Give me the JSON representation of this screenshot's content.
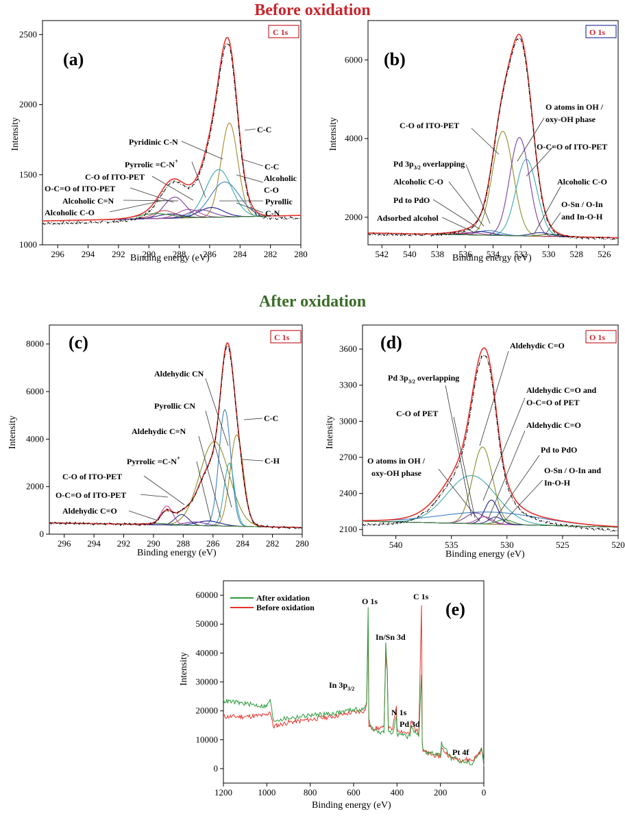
{
  "headings": {
    "before": "Before oxidation",
    "after": "After oxidation"
  },
  "colors": {
    "before_heading": "#c9252d",
    "after_heading": "#3a6b27",
    "fit_envelope": "#e8302b",
    "experimental": "#000000",
    "tag_text": "#c9252d",
    "tag_border_c1s": "#c9252d",
    "tag_border_o1s": "#2c3a9e"
  },
  "chart_data": [
    {
      "panel": "(a)",
      "tag": "C 1s",
      "type": "line",
      "xlabel": "Binding energy (eV)",
      "ylabel": "Intensity",
      "xlim": [
        297,
        280
      ],
      "ylim": [
        1000,
        2600
      ],
      "xticks": [
        296,
        294,
        292,
        290,
        288,
        286,
        284,
        282,
        280
      ],
      "yticks": [
        1000,
        1500,
        2000,
        2500
      ],
      "baseline": [
        1170,
        1210
      ],
      "envelope_peak": {
        "x": 284.7,
        "y": 2480
      },
      "components": [
        {
          "name": "C-C",
          "center": 284.7,
          "height": 670,
          "width": 0.55,
          "color": "#a3882a"
        },
        {
          "name": "C-C",
          "center": 285.4,
          "height": 340,
          "width": 0.85,
          "color": "#3aa8a8"
        },
        {
          "name": "Alcoholic C-O",
          "center": 285.0,
          "height": 250,
          "width": 0.95,
          "color": "#3d7fc4"
        },
        {
          "name": "Pyrrolic C-N",
          "center": 285.9,
          "height": 70,
          "width": 0.8,
          "color": "#1a1a8c"
        },
        {
          "name": "Pyridinic C-N",
          "center": 286.6,
          "height": 55,
          "width": 0.8,
          "color": "#7a3c9a"
        },
        {
          "name": "Pyrrolic =C-N+",
          "center": 287.4,
          "height": 60,
          "width": 0.7,
          "color": "#b04a9a"
        },
        {
          "name": "C-O of ITO-PET",
          "center": 288.3,
          "height": 150,
          "width": 0.7,
          "color": "#7a3c9a"
        },
        {
          "name": "O-C=O of ITO-PET",
          "center": 289.0,
          "height": 55,
          "width": 0.7,
          "color": "#c04a4a"
        },
        {
          "name": "Alcoholic C=N",
          "center": 288.6,
          "height": 30,
          "width": 0.8,
          "color": "#2b2b8a"
        },
        {
          "name": "Alcoholic C-O",
          "center": 289.6,
          "height": 35,
          "width": 1.1,
          "color": "#3a8a3a"
        }
      ],
      "labels": [
        "C-C",
        "Pyridinic C-N",
        "Pyrrolic =C-N",
        "C-O of ITO-PET",
        "O-C=O of ITO-PET",
        "Alcoholic C=N",
        "Alcoholic C-O",
        "C-C",
        "Alcoholic",
        "C-O",
        "Pyrollic",
        "C-N"
      ]
    },
    {
      "panel": "(b)",
      "tag": "O 1s",
      "type": "line",
      "xlabel": "Binding energy (eV)",
      "ylabel": "Intensity",
      "xlim": [
        543,
        525
      ],
      "ylim": [
        1300,
        7000
      ],
      "xticks": [
        542,
        540,
        538,
        536,
        534,
        532,
        530,
        528,
        526
      ],
      "yticks": [
        2000,
        4000,
        6000
      ],
      "baseline": [
        1600,
        1480
      ],
      "envelope_peak": {
        "x": 532.3,
        "y": 6650
      },
      "components": [
        {
          "name": "C-O of ITO-PET",
          "center": 533.3,
          "height": 2650,
          "width": 0.75,
          "color": "#8c8c2a"
        },
        {
          "name": "O atoms in OH / oxy-OH phase",
          "center": 532.1,
          "height": 2500,
          "width": 0.7,
          "color": "#7a3c9a"
        },
        {
          "name": "O-C=O of ITO-PET",
          "center": 531.6,
          "height": 1950,
          "width": 0.75,
          "color": "#3aa8a8"
        },
        {
          "name": "Pd 3p3/2 overlapping",
          "center": 534.3,
          "height": 120,
          "width": 0.8,
          "color": "#3d7fc4"
        },
        {
          "name": "Alcoholic C-O",
          "center": 534.9,
          "height": 90,
          "width": 0.8,
          "color": "#1a1a8c"
        },
        {
          "name": "Pd to PdO",
          "center": 535.6,
          "height": 60,
          "width": 0.8,
          "color": "#b04a9a"
        },
        {
          "name": "Adsorbed alcohol",
          "center": 536.8,
          "height": 40,
          "width": 0.9,
          "color": "#c04a4a"
        },
        {
          "name": "Alcoholic C-O",
          "center": 530.6,
          "height": 90,
          "width": 0.7,
          "color": "#2b2b8a"
        },
        {
          "name": "O-Sn / O-In and In-O-H",
          "center": 529.8,
          "height": 60,
          "width": 0.7,
          "color": "#3a8a3a"
        }
      ],
      "labels": [
        "C-O of ITO-PET",
        "O atoms in OH /",
        "oxy-OH phase",
        "O-C=O of ITO-PET",
        "Pd 3p",
        "overlapping",
        "Alcoholic C-O",
        "Pd to PdO",
        "Adsorbed alcohol",
        "Alcoholic C-O",
        "O-Sn / O-In",
        "and In-O-H"
      ]
    },
    {
      "panel": "(c)",
      "tag": "C 1s",
      "type": "line",
      "xlabel": "Binding energy (eV)",
      "ylabel": "Intensity",
      "xlim": [
        297,
        280
      ],
      "ylim": [
        0,
        8800
      ],
      "xticks": [
        296,
        294,
        292,
        290,
        288,
        286,
        284,
        282,
        280
      ],
      "yticks": [
        0,
        2000,
        4000,
        6000,
        8000
      ],
      "baseline": [
        480,
        280
      ],
      "envelope_peak": {
        "x": 285.0,
        "y": 8050
      },
      "components": [
        {
          "name": "Aldehydic CN",
          "center": 285.9,
          "height": 3550,
          "width": 1.0,
          "color": "#8c8c2a"
        },
        {
          "name": "C-C",
          "center": 284.4,
          "height": 3850,
          "width": 0.45,
          "color": "#a3882a"
        },
        {
          "name": "Pyrollic CN",
          "center": 285.2,
          "height": 4900,
          "width": 0.4,
          "color": "#3d7fc4"
        },
        {
          "name": "C-H",
          "center": 284.9,
          "height": 2650,
          "width": 0.35,
          "color": "#3aa8a8"
        },
        {
          "name": "Aldehydic C=N",
          "center": 286.3,
          "height": 200,
          "width": 0.8,
          "color": "#1a1a8c"
        },
        {
          "name": "Pyrrolic =C-N+",
          "center": 287.2,
          "height": 150,
          "width": 0.7,
          "color": "#7a3c9a"
        },
        {
          "name": "C-O of ITO-PET",
          "center": 288.1,
          "height": 450,
          "width": 0.45,
          "color": "#2b2b8a"
        },
        {
          "name": "O-C=O of ITO-PET",
          "center": 289.1,
          "height": 800,
          "width": 0.4,
          "color": "#c04a9a"
        },
        {
          "name": "Aldehydic C=O",
          "center": 289.8,
          "height": 60,
          "width": 0.9,
          "color": "#3a8a3a"
        }
      ],
      "labels": [
        "Aldehydic CN",
        "Pyrollic CN",
        "Aldehydic C=N",
        "Pyrrolic =C-N",
        "C-O of ITO-PET",
        "O-C=O of ITO-PET",
        "Aldehydic C=O",
        "C-C",
        "C-H"
      ]
    },
    {
      "panel": "(d)",
      "tag": "O 1s",
      "type": "line",
      "xlabel": "Binding energy (eV)",
      "ylabel": "Intensity",
      "xlim": [
        543,
        520
      ],
      "ylim": [
        2050,
        3800
      ],
      "xticks": [
        540,
        535,
        530,
        525,
        520
      ],
      "yticks": [
        2100,
        2400,
        2700,
        3000,
        3300,
        3600
      ],
      "baseline": [
        2170,
        2120
      ],
      "envelope_peak": {
        "x": 531.8,
        "y": 3610
      },
      "components": [
        {
          "name": "C-O of PET",
          "center": 533.2,
          "height": 400,
          "width": 2.2,
          "color": "#3aa8a8"
        },
        {
          "name": "Aldehydic C=O",
          "center": 532.2,
          "height": 640,
          "width": 0.9,
          "color": "#8c8c2a"
        },
        {
          "name": "O atoms in OH / oxy-OH phase",
          "center": 531.5,
          "height": 100,
          "width": 4.5,
          "color": "#3d7fc4"
        },
        {
          "name": "Pd 3p3/2 overlapping",
          "center": 532.8,
          "height": 90,
          "width": 0.9,
          "color": "#7a3c9a"
        },
        {
          "name": "Aldehydic C=O and O-C=O of PET",
          "center": 531.4,
          "height": 200,
          "width": 0.6,
          "color": "#1a1a8c"
        },
        {
          "name": "Aldehydic C=O",
          "center": 532.0,
          "height": 60,
          "width": 0.7,
          "color": "#b04a9a"
        },
        {
          "name": "Pd to PdO",
          "center": 531.0,
          "height": 60,
          "width": 0.6,
          "color": "#2b2b8a"
        },
        {
          "name": "O-Sn / O-In and In-O-H",
          "center": 530.2,
          "height": 40,
          "width": 0.7,
          "color": "#3a8a3a"
        }
      ],
      "labels": [
        "Aldehydic C=O",
        "Pd 3p",
        "overlapping",
        "Aldehydic C=O and",
        "O-C=O of PET",
        "C-O of PET",
        "Aldehydic C=O",
        "Pd to PdO",
        "O atoms in OH /",
        "oxy-OH phase",
        "O-Sn / O-In and",
        "In-O-H"
      ]
    },
    {
      "panel": "(e)",
      "type": "line",
      "xlabel": "Binding energy (eV)",
      "ylabel": "Intensity",
      "xlim": [
        1200,
        0
      ],
      "ylim": [
        -5000,
        65000
      ],
      "xticks": [
        1200,
        1000,
        800,
        600,
        400,
        200,
        0
      ],
      "yticks": [
        0,
        10000,
        20000,
        30000,
        40000,
        50000,
        60000
      ],
      "series": [
        {
          "name": "After oxidation",
          "color": "#2a9a3a",
          "x": [
            1200,
            1100,
            1000,
            985,
            970,
            960,
            900,
            800,
            700,
            600,
            550,
            540,
            533,
            530,
            520,
            500,
            460,
            452,
            445,
            440,
            420,
            403,
            400,
            340,
            336,
            300,
            287,
            284,
            280,
            250,
            200,
            195,
            150,
            100,
            50,
            10,
            0
          ],
          "y": [
            23500,
            22500,
            21500,
            24000,
            16500,
            16800,
            17500,
            18500,
            19000,
            20500,
            20500,
            23000,
            56500,
            17000,
            14500,
            13000,
            12500,
            43000,
            34000,
            12500,
            12000,
            19000,
            12000,
            11000,
            15000,
            10500,
            32000,
            9000,
            6000,
            5500,
            4500,
            9000,
            3500,
            2500,
            2000,
            7000,
            1000
          ]
        },
        {
          "name": "Before oxidation",
          "color": "#e8302b",
          "x": [
            1200,
            1100,
            1000,
            985,
            970,
            960,
            900,
            800,
            700,
            600,
            550,
            540,
            533,
            530,
            520,
            500,
            460,
            452,
            445,
            440,
            420,
            403,
            400,
            340,
            336,
            300,
            287,
            284,
            280,
            250,
            200,
            195,
            150,
            100,
            50,
            10,
            0
          ],
          "y": [
            18000,
            18000,
            18500,
            20000,
            14500,
            14800,
            16000,
            17000,
            18000,
            19500,
            20000,
            22000,
            50000,
            15000,
            14000,
            14000,
            14000,
            40000,
            33000,
            14000,
            13500,
            22000,
            13500,
            12000,
            16500,
            12000,
            57000,
            9500,
            6000,
            5000,
            4200,
            7000,
            3800,
            3200,
            3000,
            6500,
            2500
          ]
        }
      ],
      "labels": [
        "O 1s",
        "C 1s",
        "In/Sn 3d",
        "In 3p",
        "N 1s",
        "Pd 3d",
        "Pt 4f"
      ]
    }
  ]
}
